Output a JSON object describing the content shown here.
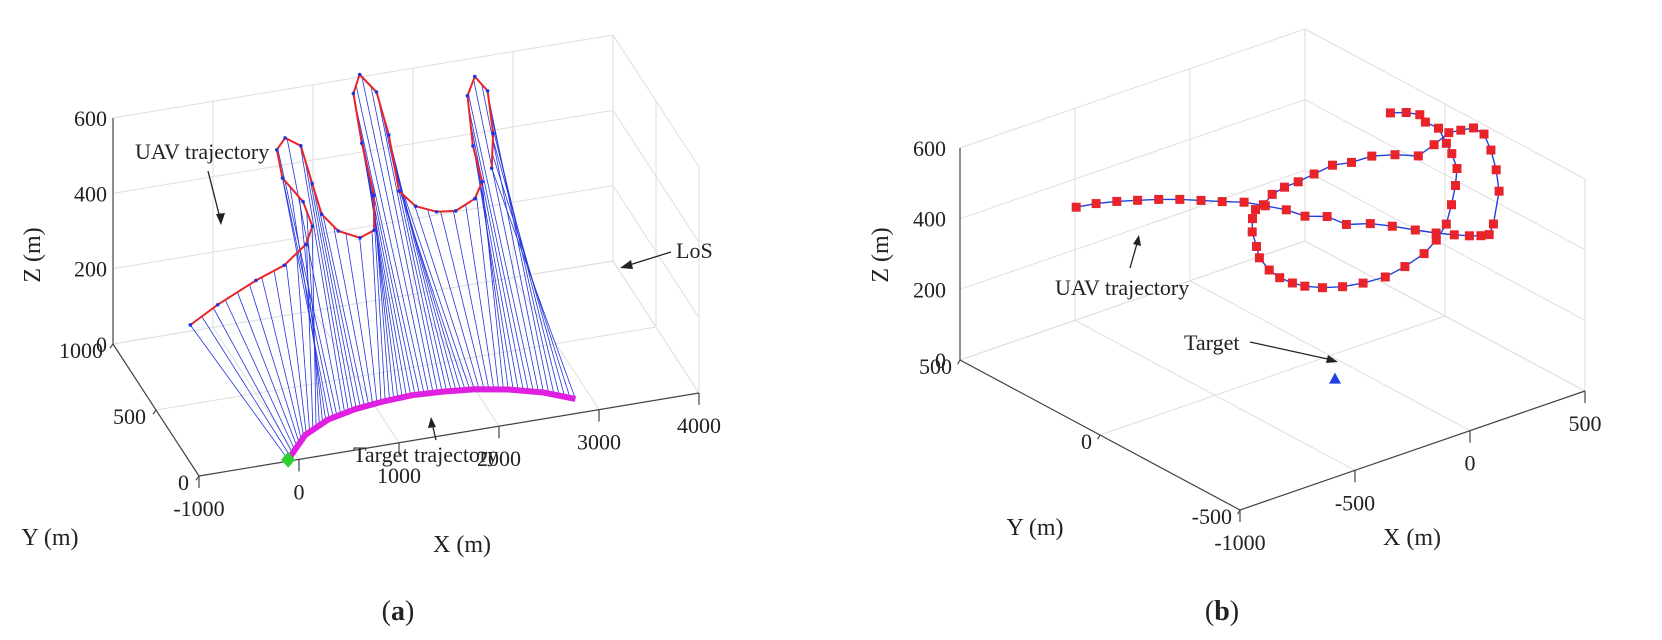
{
  "chart_data": [
    {
      "type": "line3d",
      "panel": "a",
      "caption": {
        "open": "(",
        "letter": "a",
        "close": ")"
      },
      "xlabel": "X (m)",
      "ylabel": "Y (m)",
      "zlabel": "Z (m)",
      "xlim": [
        -1000,
        4000
      ],
      "ylim": [
        0,
        1000
      ],
      "zlim": [
        0,
        600
      ],
      "xticks": [
        "-1000",
        "0",
        "1000",
        "2000",
        "3000",
        "4000"
      ],
      "yticks": [
        "0",
        "500",
        "1000"
      ],
      "zticks": [
        "0",
        "200",
        "400",
        "600"
      ],
      "grid": true,
      "annotations": {
        "uav": "UAV trajectory",
        "los": "LoS",
        "target": "Target trajectory"
      },
      "series": [
        {
          "name": "UAV trajectory",
          "color": "#e8242a",
          "points": [
            [
              -700,
              450,
              230
            ],
            [
              -400,
              480,
              260
            ],
            [
              0,
              500,
              300
            ],
            [
              300,
              520,
              320
            ],
            [
              550,
              560,
              350
            ],
            [
              650,
              600,
              380
            ],
            [
              600,
              650,
              430
            ],
            [
              420,
              680,
              490
            ],
            [
              380,
              700,
              560
            ],
            [
              480,
              720,
              580
            ],
            [
              620,
              700,
              560
            ],
            [
              700,
              660,
              470
            ],
            [
              760,
              620,
              400
            ],
            [
              900,
              590,
              360
            ],
            [
              1100,
              570,
              340
            ],
            [
              1250,
              580,
              350
            ],
            [
              1300,
              640,
              420
            ],
            [
              1230,
              700,
              540
            ],
            [
              1180,
              740,
              660
            ],
            [
              1260,
              760,
              700
            ],
            [
              1420,
              750,
              650
            ],
            [
              1500,
              700,
              550
            ],
            [
              1550,
              640,
              420
            ],
            [
              1700,
              620,
              380
            ],
            [
              1900,
              610,
              360
            ],
            [
              2100,
              620,
              350
            ],
            [
              2300,
              630,
              370
            ],
            [
              2400,
              660,
              400
            ],
            [
              2350,
              710,
              480
            ],
            [
              2330,
              750,
              600
            ],
            [
              2420,
              770,
              640
            ],
            [
              2540,
              760,
              600
            ],
            [
              2560,
              720,
              500
            ],
            [
              2520,
              690,
              420
            ]
          ]
        },
        {
          "name": "Target trajectory",
          "color": "#e020e0",
          "points": [
            [
              -100,
              10,
              0
            ],
            [
              200,
              160,
              0
            ],
            [
              500,
              240,
              0
            ],
            [
              800,
              280,
              0
            ],
            [
              1100,
              300,
              0
            ],
            [
              1400,
              310,
              0
            ],
            [
              1700,
              300,
              0
            ],
            [
              2000,
              280,
              0
            ],
            [
              2300,
              240,
              0
            ],
            [
              2600,
              180,
              0
            ],
            [
              2850,
              100,
              0
            ]
          ]
        },
        {
          "name": "Start",
          "color": "#2ad12a",
          "marker": "diamond",
          "points": [
            [
              -100,
              10,
              0
            ]
          ]
        }
      ]
    },
    {
      "type": "line3d",
      "panel": "b",
      "caption": {
        "open": "(",
        "letter": "b",
        "close": ")"
      },
      "xlabel": "X (m)",
      "ylabel": "Y (m)",
      "zlabel": "Z (m)",
      "xlim": [
        -1000,
        500
      ],
      "ylim": [
        -500,
        500
      ],
      "zlim": [
        0,
        600
      ],
      "xticks": [
        "-1000",
        "-500",
        "0",
        "500"
      ],
      "yticks": [
        "-500",
        "0",
        "500"
      ],
      "zticks": [
        "0",
        "200",
        "400",
        "600"
      ],
      "grid": true,
      "annotations": {
        "uav": "UAV trajectory",
        "target": "Target"
      },
      "series": [
        {
          "name": "UAV trajectory",
          "color": "#1f3fe0",
          "marker": "square",
          "marker_color": "#e8242a",
          "points": [
            [
              -580,
              430,
              368
            ],
            [
              -536,
              395,
              383
            ],
            [
              -491,
              358,
              395
            ],
            [
              -448,
              319,
              405
            ],
            [
              -404,
              280,
              414
            ],
            [
              -362,
              239,
              422
            ],
            [
              -321,
              197,
              428
            ],
            [
              -280,
              155,
              433
            ],
            [
              -237,
              112,
              440
            ],
            [
              -202,
              65,
              442
            ],
            [
              -168,
              18,
              443
            ],
            [
              -138,
              -24,
              436
            ],
            [
              -109,
              -79,
              452
            ],
            [
              -87,
              -130,
              446
            ],
            [
              -28,
              -167,
              451
            ],
            [
              26,
              -201,
              446
            ],
            [
              87,
              -233,
              435
            ],
            [
              152,
              -254,
              421
            ],
            [
              219,
              -264,
              405
            ],
            [
              287,
              -262,
              386
            ],
            [
              353,
              -249,
              366
            ],
            [
              417,
              -226,
              345
            ],
            [
              472,
              -196,
              350
            ],
            [
              544,
              -157,
              410
            ],
            [
              567,
              -128,
              453
            ],
            [
              584,
              -95,
              491
            ],
            [
              594,
              -62,
              520
            ],
            [
              597,
              -22,
              520
            ],
            [
              592,
              19,
              497
            ],
            [
              581,
              53,
              478
            ],
            [
              544,
              75,
              443
            ],
            [
              501,
              96,
              412
            ],
            [
              447,
              135,
              411
            ],
            [
              391,
              172,
              404
            ],
            [
              343,
              205,
              383
            ],
            [
              291,
              230,
              376
            ],
            [
              234,
              249,
              356
            ],
            [
              176,
              258,
              343
            ],
            [
              120,
              261,
              339
            ],
            [
              59,
              255,
              335
            ],
            [
              4,
              241,
              324
            ],
            [
              -55,
              221,
              332
            ],
            [
              -102,
              193,
              329
            ],
            [
              -146,
              158,
              316
            ],
            [
              -170,
              123,
              295
            ],
            [
              -206,
              83,
              288
            ],
            [
              -223,
              34,
              278
            ],
            [
              -226,
              -6,
              274
            ],
            [
              -222,
              -48,
              276
            ],
            [
              -212,
              -84,
              280
            ],
            [
              -185,
              -125,
              287
            ],
            [
              -146,
              -165,
              298
            ],
            [
              -102,
              -202,
              314
            ],
            [
              -41,
              -231,
              330
            ],
            [
              20,
              -251,
              354
            ],
            [
              90,
              -262,
              380
            ],
            [
              147,
              -259,
              404
            ],
            [
              216,
              -238,
              425
            ],
            [
              264,
              -217,
              460
            ],
            [
              324,
              -182,
              486
            ],
            [
              384,
              -138,
              502
            ],
            [
              425,
              -86,
              513
            ],
            [
              460,
              -38,
              514
            ],
            [
              496,
              20,
              524
            ],
            [
              500,
              70,
              519
            ],
            [
              522,
              108,
              519
            ],
            [
              509,
              146,
              512
            ],
            [
              484,
              182,
              501
            ]
          ]
        },
        {
          "name": "Target",
          "color": "#1f3fe0",
          "marker": "triangle",
          "points": [
            [
              -100,
              -100,
              0
            ]
          ]
        }
      ]
    }
  ]
}
